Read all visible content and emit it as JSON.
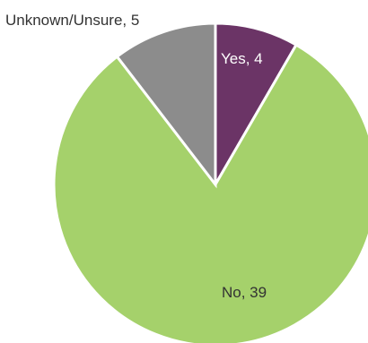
{
  "chart_data": {
    "type": "pie",
    "title": "",
    "categories": [
      "Yes",
      "No",
      "Unknown/Unsure"
    ],
    "values": [
      4,
      39,
      5
    ],
    "colors": [
      "#6b3466",
      "#a5d16b",
      "#8c8c8c"
    ],
    "data_labels": [
      "Yes, 4",
      "No, 39",
      "Unknown/Unsure, 5"
    ],
    "label_colors": [
      "#ffffff",
      "#333333",
      "#333333"
    ],
    "start_angle": "12 o'clock",
    "direction": "clockwise",
    "legend": "none"
  }
}
